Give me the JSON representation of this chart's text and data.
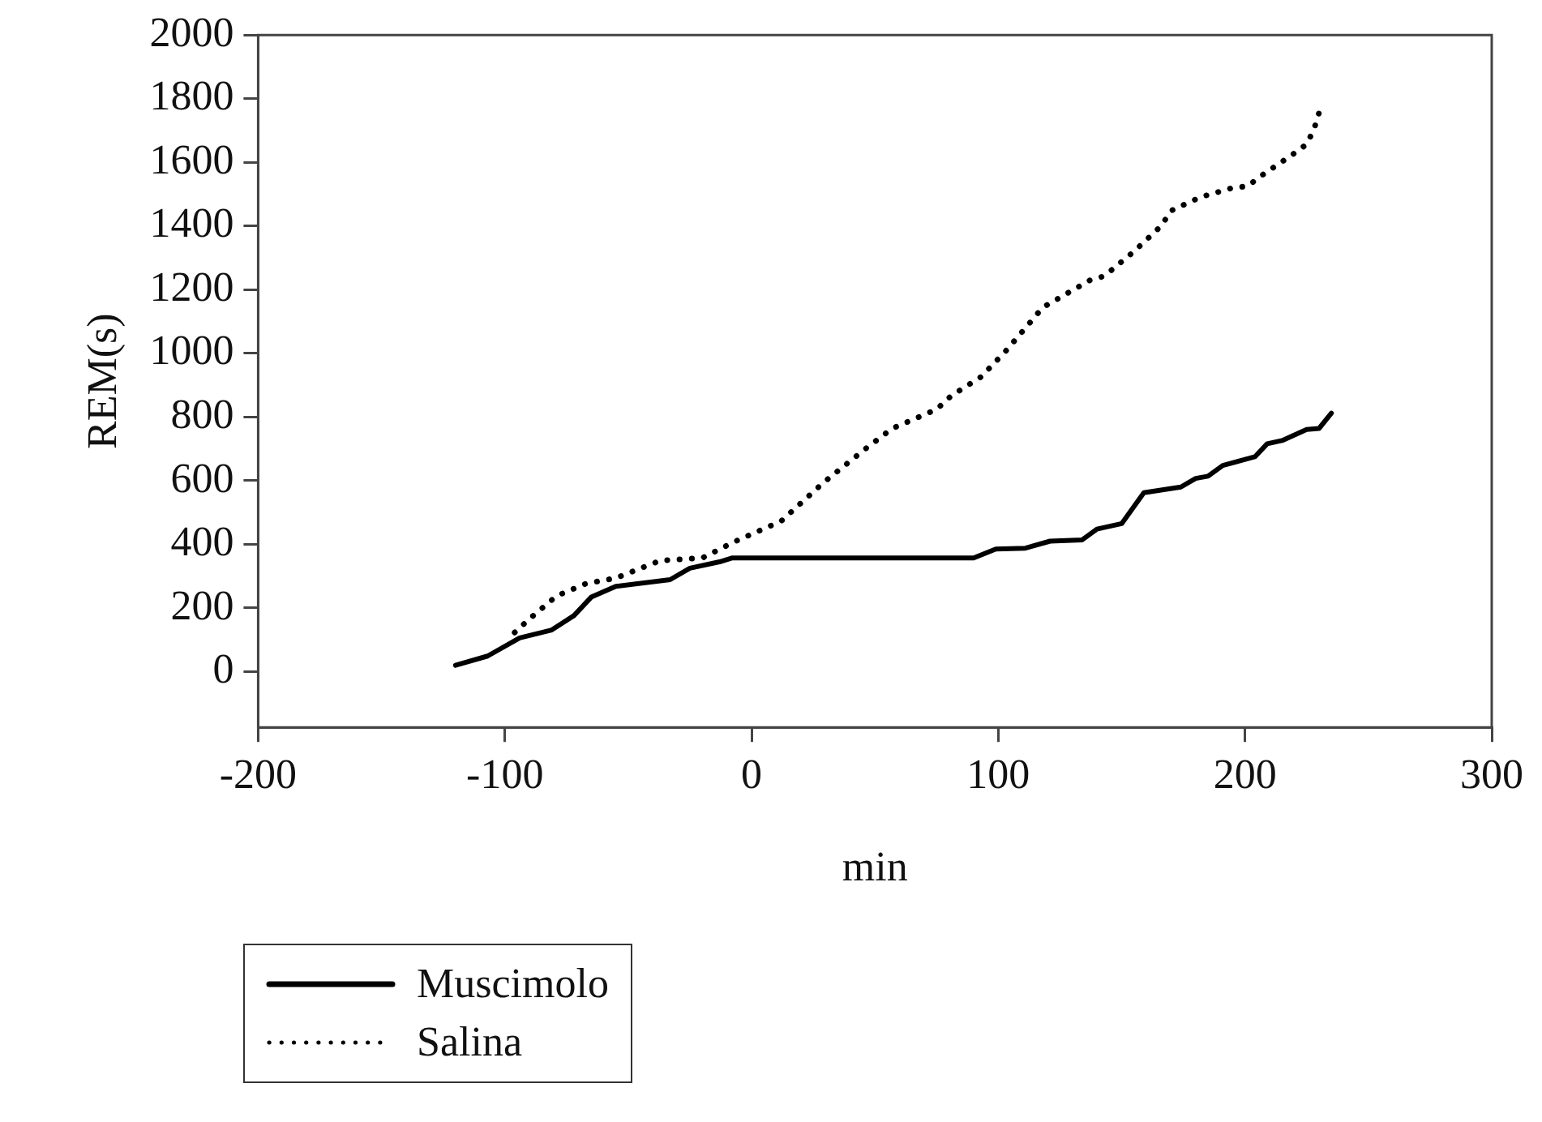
{
  "chart_data": {
    "type": "line",
    "xlabel": "min",
    "ylabel": "REM(s)",
    "xlim": [
      -200,
      300
    ],
    "xticks": [
      -200,
      -100,
      0,
      100,
      200,
      300
    ],
    "ylim": [
      -175,
      2000
    ],
    "yticks": [
      0,
      200,
      400,
      600,
      800,
      1000,
      1200,
      1400,
      1600,
      1800,
      2000
    ],
    "grid": false,
    "legend": "bottom left",
    "marker": "none",
    "series": [
      {
        "name": "Muscimolo",
        "color": "#000000",
        "line_style": "solid",
        "x": [
          -120,
          -107,
          -94,
          -81,
          -72,
          -65,
          -55,
          -33,
          -25,
          -13,
          -8,
          90,
          99,
          111,
          121,
          134,
          140,
          150,
          159,
          174,
          180,
          185,
          191,
          204,
          209,
          215,
          225,
          230,
          235
        ],
        "values": [
          20,
          49,
          106,
          131,
          176,
          234,
          268,
          289,
          325,
          345,
          357,
          357,
          385,
          388,
          410,
          414,
          448,
          465,
          562,
          580,
          607,
          614,
          648,
          675,
          716,
          726,
          761,
          764,
          812
        ]
      },
      {
        "name": "Salina",
        "color": "#000000",
        "line_style": "dotted",
        "x": [
          -96,
          -90,
          -79,
          -67,
          -55,
          -37,
          -20,
          -7,
          12,
          29,
          46,
          57,
          75,
          81,
          93,
          103,
          113,
          118,
          137,
          143,
          155,
          166,
          170,
          182,
          195,
          201,
          207,
          219,
          225,
          228,
          230
        ],
        "values": [
          123,
          166,
          238,
          277,
          294,
          349,
          357,
          408,
          473,
          593,
          699,
          764,
          824,
          867,
          926,
          1007,
          1098,
          1144,
          1229,
          1243,
          1320,
          1400,
          1448,
          1491,
          1520,
          1525,
          1560,
          1623,
          1657,
          1705,
          1756
        ]
      }
    ]
  }
}
